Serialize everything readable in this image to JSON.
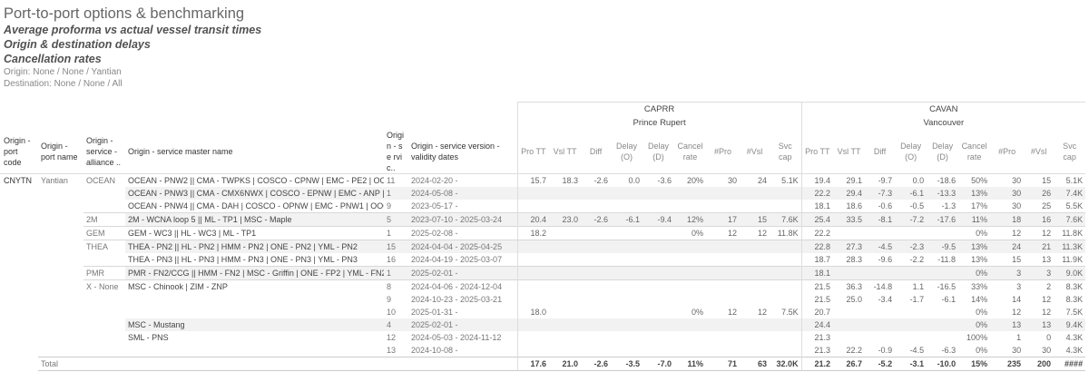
{
  "header": {
    "title": "Port-to-port options & benchmarking",
    "subtitles": [
      "Average proforma vs actual vessel transit times",
      "Origin & destination delays",
      "Cancellation rates"
    ],
    "origin_filter": "Origin: None / None / Yantian",
    "destination_filter": "Destination: None / None / All"
  },
  "columns": {
    "origin_port_code": "Origin - port code",
    "origin_port_name": "Origin - port name",
    "origin_alliance": "Origin - service - alliance ..",
    "origin_master": "Origin - service master name",
    "origin_num": "Origi n - se rvic..",
    "origin_dates": "Origin - service version - validity dates",
    "metrics": [
      "Pro TT",
      "Vsl TT",
      "Diff",
      "Delay (O)",
      "Delay (D)",
      "Cancel rate",
      "#Pro",
      "#Vsl",
      "Svc cap"
    ]
  },
  "destinations": [
    {
      "code": "CAPRR",
      "name": "Prince Rupert"
    },
    {
      "code": "CAVAN",
      "name": "Vancouver"
    }
  ],
  "rows": [
    {
      "code": "CNYTN",
      "port": "Yantian",
      "alliance": "OCEAN",
      "master": "OCEAN - PNW2 || CMA - TWPKS | COSCO - CPNW | EMC - PE2 | OOC..",
      "num": "11",
      "dates": "2024-02-20 -",
      "caprr": [
        "15.7",
        "18.3",
        "-2.6",
        "0.0",
        "-3.6",
        "20%",
        "30",
        "24",
        "5.1K"
      ],
      "cavan": [
        "19.4",
        "29.1",
        "-9.7",
        "0.0",
        "-18.6",
        "50%",
        "30",
        "15",
        "5.1K"
      ]
    },
    {
      "code": "",
      "port": "",
      "alliance": "",
      "master": "OCEAN - PNW3 || CMA - CMX6NWX | COSCO - EPNW | EMC - ANP | ..",
      "num": "1",
      "dates": "2024-05-08 -",
      "caprr": [
        "",
        "",
        "",
        "",
        "",
        "",
        "",
        "",
        ""
      ],
      "cavan": [
        "22.2",
        "29.4",
        "-7.3",
        "-6.1",
        "-13.3",
        "13%",
        "30",
        "26",
        "7.4K"
      ]
    },
    {
      "code": "",
      "port": "",
      "alliance": "",
      "master": "OCEAN - PNW4 || CMA - DAH | COSCO - OPNW | EMC - PNW1 | OOC..",
      "num": "9",
      "dates": "2023-05-17 -",
      "caprr": [
        "",
        "",
        "",
        "",
        "",
        "",
        "",
        "",
        ""
      ],
      "cavan": [
        "18.1",
        "18.6",
        "-0.6",
        "-0.5",
        "-1.3",
        "17%",
        "30",
        "25",
        "5.5K"
      ]
    },
    {
      "code": "",
      "port": "",
      "alliance": "2M",
      "master": "2M - WCNA loop 5 || ML - TP1 | MSC - Maple",
      "num": "5",
      "dates": "2023-07-10 - 2025-03-24",
      "caprr": [
        "20.4",
        "23.0",
        "-2.6",
        "-6.1",
        "-9.4",
        "12%",
        "17",
        "15",
        "7.6K"
      ],
      "cavan": [
        "25.4",
        "33.5",
        "-8.1",
        "-7.2",
        "-17.6",
        "11%",
        "18",
        "16",
        "7.6K"
      ]
    },
    {
      "code": "",
      "port": "",
      "alliance": "GEM",
      "master": "GEM - WC3 || HL - WC3 | ML - TP1",
      "num": "1",
      "dates": "2025-02-08 -",
      "caprr": [
        "18.2",
        "",
        "",
        "",
        "",
        "0%",
        "12",
        "12",
        "11.8K"
      ],
      "cavan": [
        "22.2",
        "",
        "",
        "",
        "",
        "0%",
        "12",
        "12",
        "11.8K"
      ]
    },
    {
      "code": "",
      "port": "",
      "alliance": "THEA",
      "master": "THEA - PN2 || HL - PN2 | HMM - PN2 | ONE - PN2 | YML - PN2",
      "num": "15",
      "dates": "2024-04-04 - 2025-04-25",
      "caprr": [
        "",
        "",
        "",
        "",
        "",
        "",
        "",
        "",
        ""
      ],
      "cavan": [
        "22.8",
        "27.3",
        "-4.5",
        "-2.3",
        "-9.5",
        "13%",
        "24",
        "21",
        "11.3K"
      ]
    },
    {
      "code": "",
      "port": "",
      "alliance": "",
      "master": "THEA - PN3 || HL - PN3 | HMM - PN3 | ONE - PN3 | YML - PN3",
      "num": "16",
      "dates": "2024-04-19 - 2025-03-07",
      "caprr": [
        "",
        "",
        "",
        "",
        "",
        "",
        "",
        "",
        ""
      ],
      "cavan": [
        "18.7",
        "28.3",
        "-9.6",
        "-2.2",
        "-11.8",
        "13%",
        "15",
        "13",
        "11.9K"
      ]
    },
    {
      "code": "",
      "port": "",
      "alliance": "PMR",
      "master": "PMR - FN2/CCG || HMM - FN2 | MSC - Griffin | ONE - FP2 | YML - FN2",
      "num": "1",
      "dates": "2025-02-01 -",
      "caprr": [
        "",
        "",
        "",
        "",
        "",
        "",
        "",
        "",
        ""
      ],
      "cavan": [
        "18.1",
        "",
        "",
        "",
        "",
        "0%",
        "3",
        "3",
        "9.0K"
      ]
    },
    {
      "code": "",
      "port": "",
      "alliance": "X - None",
      "master": "MSC - Chinook | ZIM - ZNP",
      "num": "8",
      "dates": "2024-04-06 - 2024-12-04",
      "caprr": [
        "",
        "",
        "",
        "",
        "",
        "",
        "",
        "",
        ""
      ],
      "cavan": [
        "21.5",
        "36.3",
        "-14.8",
        "1.1",
        "-16.5",
        "33%",
        "3",
        "2",
        "8.3K"
      ]
    },
    {
      "code": "",
      "port": "",
      "alliance": "",
      "master": "",
      "num": "9",
      "dates": "2024-10-23 - 2025-03-21",
      "caprr": [
        "",
        "",
        "",
        "",
        "",
        "",
        "",
        "",
        ""
      ],
      "cavan": [
        "21.5",
        "25.0",
        "-3.4",
        "-1.7",
        "-6.1",
        "14%",
        "14",
        "12",
        "8.3K"
      ]
    },
    {
      "code": "",
      "port": "",
      "alliance": "",
      "master": "",
      "num": "10",
      "dates": "2025-01-31 -",
      "caprr": [
        "18.0",
        "",
        "",
        "",
        "",
        "0%",
        "12",
        "12",
        "7.5K"
      ],
      "cavan": [
        "20.7",
        "",
        "",
        "",
        "",
        "0%",
        "12",
        "12",
        "7.5K"
      ]
    },
    {
      "code": "",
      "port": "",
      "alliance": "",
      "master": "MSC - Mustang",
      "num": "4",
      "dates": "2025-02-01 -",
      "caprr": [
        "",
        "",
        "",
        "",
        "",
        "",
        "",
        "",
        ""
      ],
      "cavan": [
        "24.4",
        "",
        "",
        "",
        "",
        "0%",
        "13",
        "13",
        "9.4K"
      ]
    },
    {
      "code": "",
      "port": "",
      "alliance": "",
      "master": "SML - PNS",
      "num": "12",
      "dates": "2024-05-03 - 2024-11-12",
      "caprr": [
        "",
        "",
        "",
        "",
        "",
        "",
        "",
        "",
        ""
      ],
      "cavan": [
        "21.3",
        "",
        "",
        "",
        "",
        "100%",
        "1",
        "0",
        "4.3K"
      ]
    },
    {
      "code": "",
      "port": "",
      "alliance": "",
      "master": "",
      "num": "13",
      "dates": "2024-10-08 -",
      "caprr": [
        "",
        "",
        "",
        "",
        "",
        "",
        "",
        "",
        ""
      ],
      "cavan": [
        "21.3",
        "22.2",
        "-0.9",
        "-4.5",
        "-6.3",
        "0%",
        "30",
        "30",
        "4.3K"
      ]
    }
  ],
  "total": {
    "label": "Total",
    "caprr": [
      "17.6",
      "21.0",
      "-2.6",
      "-3.5",
      "-7.0",
      "11%",
      "71",
      "63",
      "32.0K"
    ],
    "cavan": [
      "21.2",
      "26.7",
      "-5.2",
      "-3.1",
      "-10.0",
      "15%",
      "235",
      "200",
      "####"
    ]
  }
}
